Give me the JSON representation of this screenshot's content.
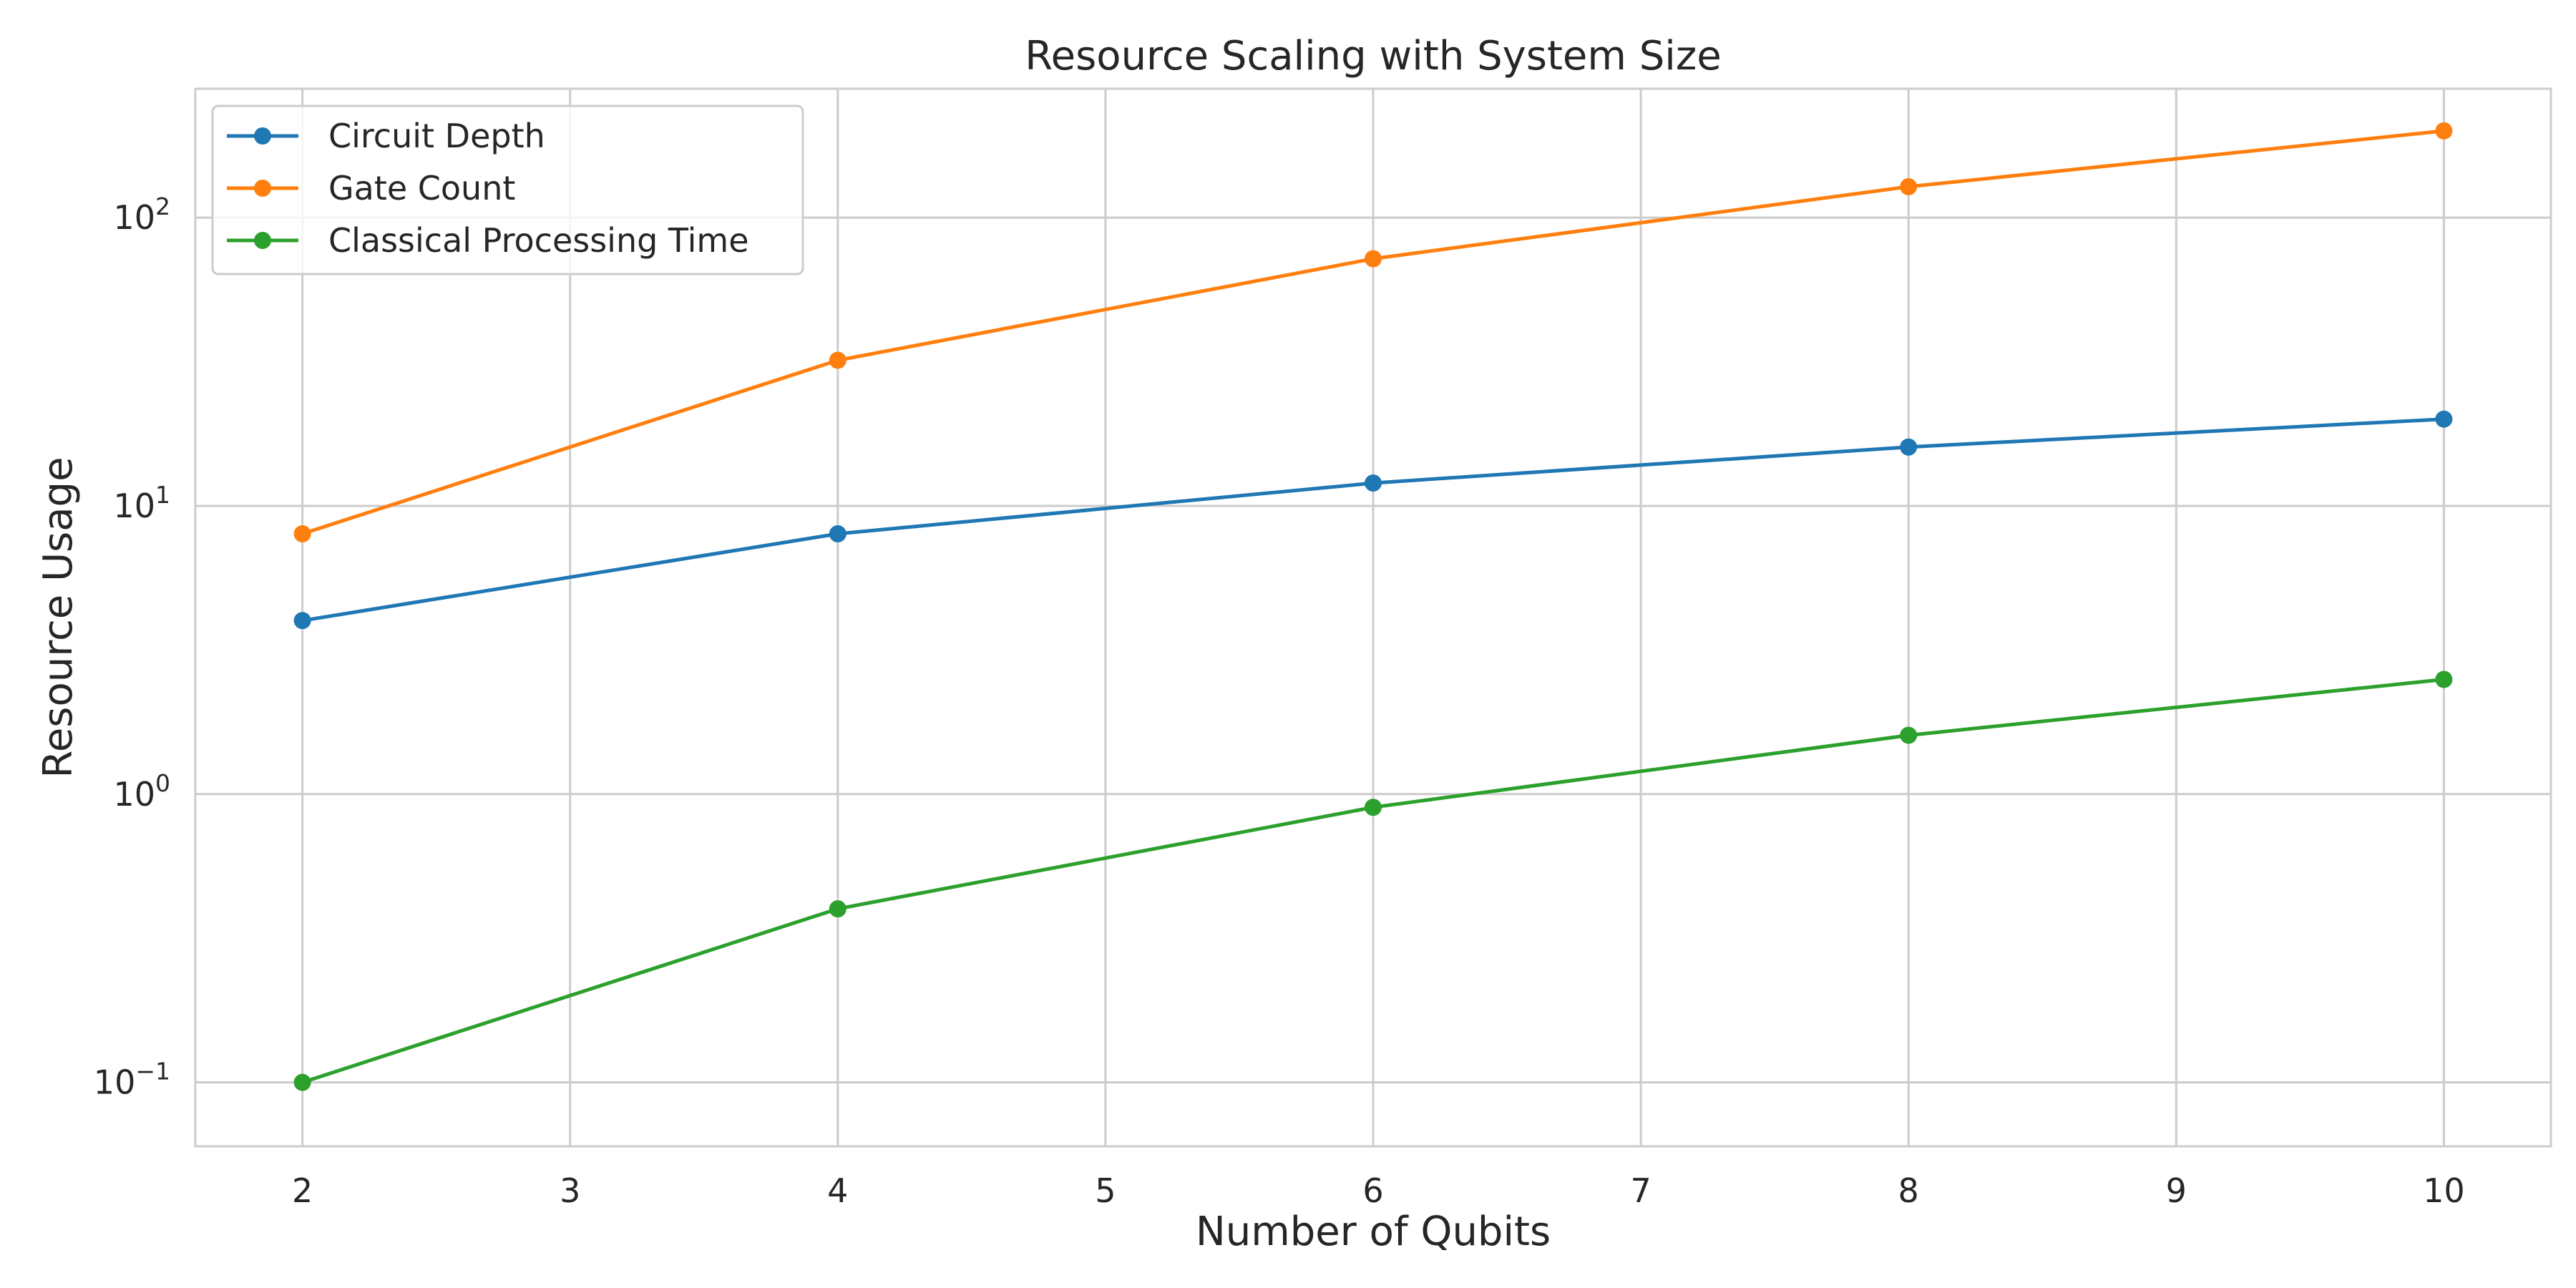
{
  "chart_data": {
    "type": "line",
    "title": "Resource Scaling with System Size",
    "xlabel": "Number of Qubits",
    "ylabel": "Resource Usage",
    "x": [
      2,
      4,
      6,
      8,
      10
    ],
    "xlim": [
      1.6,
      10.4
    ],
    "xticks": [
      2,
      3,
      4,
      5,
      6,
      7,
      8,
      9,
      10
    ],
    "yscale": "log",
    "ylim": [
      0.06,
      280
    ],
    "yticks": [
      {
        "value": 0.1,
        "base": "10",
        "exp": "−1"
      },
      {
        "value": 1,
        "base": "10",
        "exp": "0"
      },
      {
        "value": 10,
        "base": "10",
        "exp": "1"
      },
      {
        "value": 100,
        "base": "10",
        "exp": "2"
      }
    ],
    "grid": true,
    "legend_position": "top-left",
    "series": [
      {
        "name": "Circuit Depth",
        "color": "#1f77b4",
        "values": [
          4,
          8,
          12,
          16,
          20
        ]
      },
      {
        "name": "Gate Count",
        "color": "#ff7f0e",
        "values": [
          8,
          32,
          72,
          128,
          200
        ]
      },
      {
        "name": "Classical Processing Time",
        "color": "#2ca02c",
        "values": [
          0.1,
          0.4,
          0.9,
          1.6,
          2.5
        ]
      }
    ]
  }
}
